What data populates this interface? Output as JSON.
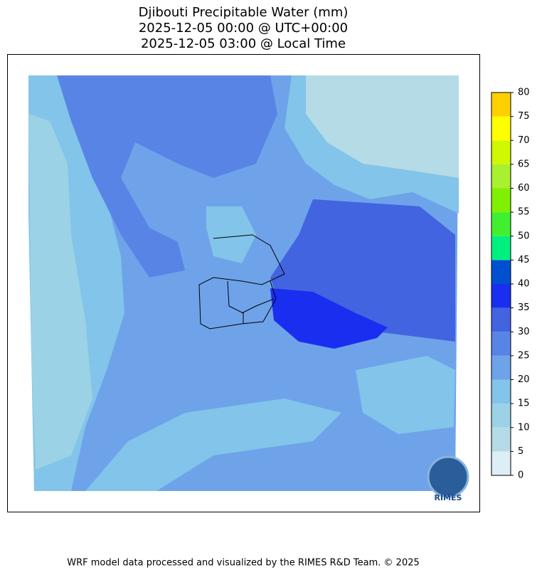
{
  "header": {
    "title": [
      "Djibouti Precipitable Water (mm)",
      "2025-12-05 00:00 @ UTC+00:00",
      "2025-12-05 03:00 @ Local Time"
    ]
  },
  "colorbar": {
    "ticks": [
      0,
      5,
      10,
      15,
      20,
      25,
      30,
      35,
      40,
      45,
      50,
      55,
      60,
      65,
      70,
      75,
      80
    ],
    "colors": [
      "#ddeef6",
      "#b4dbe6",
      "#9bd2e6",
      "#82c4ea",
      "#6ea3ea",
      "#5884e6",
      "#4364e0",
      "#1a2ef0",
      "#0050d0",
      "#00f080",
      "#40f030",
      "#80f000",
      "#a8f030",
      "#d0f800",
      "#ffff00",
      "#ffd000"
    ]
  },
  "logo": "RIMES",
  "footer": "WRF model data processed and visualized by the RIMES R&D Team. © 2025"
}
